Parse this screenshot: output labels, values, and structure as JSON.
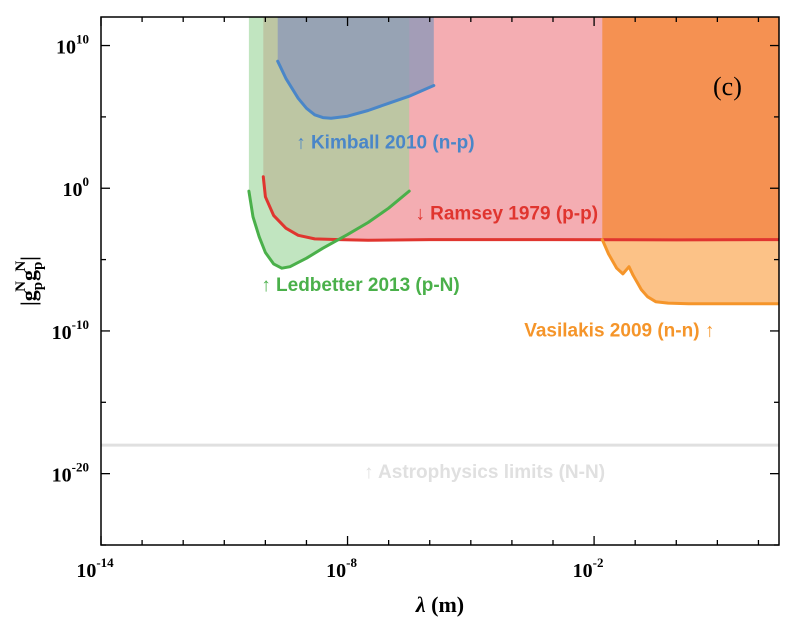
{
  "chart_data": {
    "type": "area",
    "panel_label": "(c)",
    "xlabel_sym": "λ",
    "xlabel_unit": "(m)",
    "ylabel": {
      "open": "|g",
      "sup1": "N",
      "sub1": "p",
      "mid": "g",
      "sup2": "N",
      "sub2": "p",
      "close": "|"
    },
    "x_scale": "log10",
    "y_scale": "log10",
    "xlim": [
      -14,
      2.5
    ],
    "ylim": [
      -25,
      12
    ],
    "x_ticks": [
      {
        "base": "10",
        "exp": "-14",
        "value": -14
      },
      {
        "base": "10",
        "exp": "-8",
        "value": -8
      },
      {
        "base": "10",
        "exp": "-2",
        "value": -2
      }
    ],
    "y_ticks": [
      {
        "base": "10",
        "exp": "-20",
        "value": -20
      },
      {
        "base": "10",
        "exp": "-10",
        "value": -10
      },
      {
        "base": "10",
        "exp": "0",
        "value": 0
      },
      {
        "base": "10",
        "exp": "10",
        "value": 10
      }
    ],
    "series": [
      {
        "name": "Ramsey 1979 (p-p)",
        "label": "↓ Ramsey 1979 (p-p)",
        "label_at": [
          -6.35,
          -2.2
        ],
        "color": "#e0352f",
        "fill": "#f08a92",
        "fill_opacity": 0.7,
        "fill_side": "above",
        "x": [
          -10.05,
          -10.0,
          -9.8,
          -9.5,
          -9.2,
          -8.8,
          -8.2,
          -7.5,
          -6.0,
          -3.0,
          0.0,
          2.5
        ],
        "y": [
          0.8,
          -0.6,
          -1.9,
          -2.8,
          -3.3,
          -3.55,
          -3.6,
          -3.65,
          -3.6,
          -3.6,
          -3.62,
          -3.6
        ]
      },
      {
        "name": "Kimball 2010 (n-p)",
        "label": "↑ Kimball 2010 (n-p)",
        "label_at": [
          -9.25,
          2.8
        ],
        "color": "#4a86c8",
        "fill": "#8c98b8",
        "fill_opacity": 0.78,
        "fill_side": "above",
        "x": [
          -9.7,
          -9.5,
          -9.2,
          -9.0,
          -8.8,
          -8.6,
          -8.4,
          -8.0,
          -7.5,
          -7.0,
          -6.5,
          -5.9
        ],
        "y": [
          8.9,
          7.7,
          6.3,
          5.6,
          5.15,
          4.95,
          4.9,
          5.05,
          5.45,
          5.95,
          6.45,
          7.2
        ]
      },
      {
        "name": "Ledbetter 2013 (p-N)",
        "label": "↑ Ledbetter 2013 (p-N)",
        "label_at": [
          -10.1,
          -7.2
        ],
        "color": "#4ab04a",
        "fill": "#9bd59a",
        "fill_opacity": 0.62,
        "fill_side": "above",
        "x": [
          -10.4,
          -10.3,
          -10.15,
          -10.0,
          -9.8,
          -9.6,
          -9.4,
          -9.2,
          -9.0,
          -8.6,
          -8.0,
          -7.5,
          -7.0,
          -6.5
        ],
        "y": [
          -0.2,
          -2.0,
          -3.4,
          -4.5,
          -5.3,
          -5.6,
          -5.5,
          -5.2,
          -4.9,
          -4.2,
          -3.25,
          -2.4,
          -1.4,
          -0.2
        ]
      },
      {
        "name": "Vasilakis 2009 (n-n)",
        "label": "Vasilakis 2009 (n-n) ↑",
        "label_at": [
          -3.7,
          -10.4
        ],
        "color": "#f5952a",
        "fill": "#f5852a",
        "fill_opacity": 0.7,
        "fill_side": "above",
        "edge_fill": "#fdc88f",
        "edge_fill_opacity": 0.8,
        "x": [
          -1.8,
          -1.65,
          -1.45,
          -1.3,
          -1.15,
          -1.05,
          -0.95,
          -0.85,
          -0.7,
          -0.5,
          -0.2,
          0.3,
          1.0,
          2.5
        ],
        "y": [
          -3.6,
          -4.6,
          -5.6,
          -6.0,
          -5.5,
          -6.1,
          -6.6,
          -7.1,
          -7.6,
          -7.95,
          -8.05,
          -8.1,
          -8.1,
          -8.1
        ]
      },
      {
        "name": "Astrophysics limits (N-N)",
        "label": "↑ Astrophysics limits (N-N)",
        "label_at": [
          -7.6,
          -20.3
        ],
        "color": "#e0e0e0",
        "x": [
          -14,
          2.5
        ],
        "y": [
          -18.0,
          -18.0
        ]
      }
    ]
  }
}
